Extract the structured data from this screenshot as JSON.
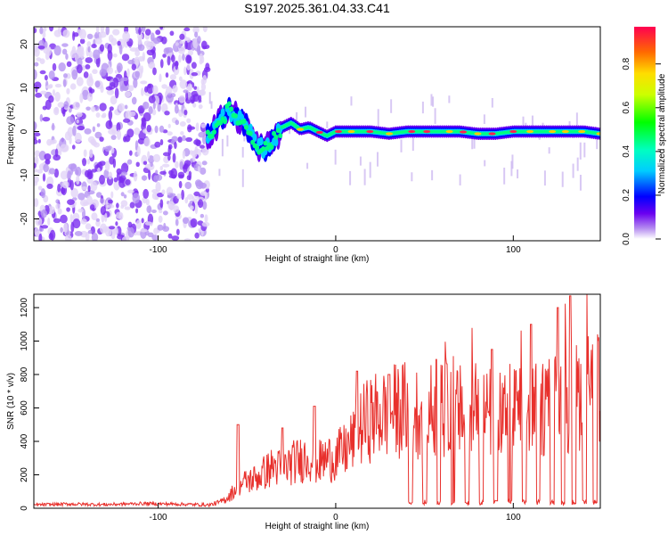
{
  "title": "S197.2025.361.04.33.C41",
  "chart_data": [
    {
      "type": "heatmap",
      "xlabel": "Height of straight line (km)",
      "ylabel": "Frequency (Hz)",
      "xlim": [
        -170,
        149
      ],
      "ylim": [
        -25,
        24
      ],
      "xticks": [
        -100,
        0,
        100
      ],
      "yticks": [
        -20,
        -10,
        0,
        10,
        20
      ],
      "colorbar": {
        "label": "Normalized spectral amplitude",
        "range": [
          0,
          0.97
        ],
        "ticks": [
          0.0,
          0.2,
          0.4,
          0.6,
          0.8
        ],
        "tick_labels": [
          "0.0",
          "0.2",
          "0.4",
          "0.6",
          "0.8"
        ]
      },
      "noise_region": {
        "x_start": -170,
        "x_end": -72,
        "amplitude": 0.05
      },
      "signal_track": {
        "x": [
          -72,
          -66,
          -60,
          -55,
          -50,
          -45,
          -40,
          -35,
          -30,
          -25,
          -20,
          -15,
          -10,
          -5,
          0,
          10,
          20,
          30,
          40,
          50,
          60,
          70,
          80,
          90,
          100,
          110,
          120,
          130,
          140,
          149
        ],
        "freq": [
          -1,
          2,
          5,
          3,
          1,
          -3,
          -4,
          -2,
          1,
          2,
          0.5,
          1,
          0,
          -1,
          0,
          0,
          0,
          -0.5,
          0,
          0,
          0,
          0,
          -0.5,
          -0.5,
          0,
          0,
          0,
          0,
          0,
          -0.5
        ]
      }
    },
    {
      "type": "line",
      "xlabel": "Height of straight line (km)",
      "ylabel": "SNR (10 * v/v)",
      "xlim": [
        -170,
        149
      ],
      "ylim": [
        0,
        1280
      ],
      "xticks": [
        -100,
        0,
        100
      ],
      "yticks": [
        0,
        200,
        400,
        600,
        800,
        1000,
        1200
      ],
      "series": [
        {
          "name": "SNR",
          "color": "#e8302c",
          "x": [
            -170,
            -150,
            -130,
            -110,
            -90,
            -72,
            -65,
            -60,
            -55,
            -50,
            -45,
            -40,
            -35,
            -30,
            -25,
            -20,
            -15,
            -10,
            -5,
            0,
            5,
            10,
            15,
            20,
            25,
            30,
            35,
            40,
            45,
            50,
            60,
            70,
            80,
            90,
            100,
            110,
            120,
            130,
            140,
            149
          ],
          "y": [
            20,
            25,
            22,
            28,
            25,
            20,
            40,
            80,
            150,
            180,
            200,
            240,
            280,
            260,
            300,
            320,
            350,
            300,
            330,
            340,
            380,
            450,
            550,
            600,
            620,
            640,
            650,
            660,
            640,
            650,
            650,
            640,
            620,
            630,
            640,
            650,
            680,
            720,
            760,
            780
          ]
        }
      ],
      "spikes": [
        {
          "x": -55,
          "y": 500
        },
        {
          "x": -30,
          "y": 480
        },
        {
          "x": -12,
          "y": 610
        },
        {
          "x": 12,
          "y": 820
        },
        {
          "x": 30,
          "y": 800
        },
        {
          "x": 57,
          "y": 890
        },
        {
          "x": 74,
          "y": 870
        },
        {
          "x": 88,
          "y": 950
        },
        {
          "x": 98,
          "y": 1220
        },
        {
          "x": 110,
          "y": 1100
        },
        {
          "x": 125,
          "y": 1200
        },
        {
          "x": 132,
          "y": 1270
        },
        {
          "x": 141,
          "y": 1280
        }
      ],
      "dips": [
        42,
        50,
        58,
        66,
        74,
        82,
        90,
        98,
        106,
        114,
        122,
        128,
        134,
        140,
        146
      ]
    }
  ]
}
